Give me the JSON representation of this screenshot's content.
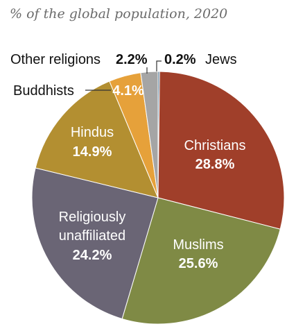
{
  "chart_data": {
    "type": "pie",
    "subtitle": "% of the global population, 2020",
    "unit": "%",
    "slices": [
      {
        "name": "Jews",
        "value": 0.2,
        "label": "0.2%",
        "color": "#3f6e8f"
      },
      {
        "name": "Christians",
        "value": 28.8,
        "label": "28.8%",
        "color": "#a03f2a"
      },
      {
        "name": "Muslims",
        "value": 25.6,
        "label": "25.6%",
        "color": "#7f8a45"
      },
      {
        "name": "Religiously unaffiliated",
        "value": 24.2,
        "label": "24.2%",
        "color": "#6a6575"
      },
      {
        "name": "Hindus",
        "value": 14.9,
        "label": "14.9%",
        "color": "#b38f31"
      },
      {
        "name": "Buddhists",
        "value": 4.1,
        "label": "4.1%",
        "color": "#e6a13a"
      },
      {
        "name": "Other religions",
        "value": 2.2,
        "label": "2.2%",
        "color": "#a5a5a5"
      }
    ]
  },
  "labels": {
    "christians_name": "Christians",
    "muslims_name": "Muslims",
    "unaffiliated_line1": "Religiously",
    "unaffiliated_line2": "unaffiliated",
    "hindus_name": "Hindus",
    "buddhists_name": "Buddhists",
    "other_name": "Other religions",
    "jews_name": "Jews"
  }
}
